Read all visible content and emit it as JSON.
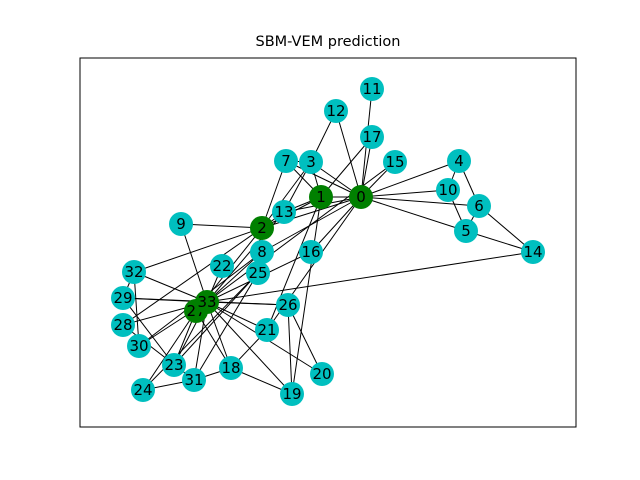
{
  "title": "SBM-VEM prediction",
  "colors": {
    "cluster_0": "#00bfbf",
    "cluster_1": "#008000",
    "edge": "#000000",
    "frame": "#000000"
  },
  "graph": {
    "nodes": [
      {
        "id": "0",
        "cluster": 1
      },
      {
        "id": "1",
        "cluster": 1
      },
      {
        "id": "2",
        "cluster": 1
      },
      {
        "id": "3",
        "cluster": 0
      },
      {
        "id": "4",
        "cluster": 0
      },
      {
        "id": "5",
        "cluster": 0
      },
      {
        "id": "6",
        "cluster": 0
      },
      {
        "id": "7",
        "cluster": 0
      },
      {
        "id": "8",
        "cluster": 0
      },
      {
        "id": "9",
        "cluster": 0
      },
      {
        "id": "10",
        "cluster": 0
      },
      {
        "id": "11",
        "cluster": 0
      },
      {
        "id": "12",
        "cluster": 0
      },
      {
        "id": "13",
        "cluster": 0
      },
      {
        "id": "14",
        "cluster": 0
      },
      {
        "id": "15",
        "cluster": 0
      },
      {
        "id": "16",
        "cluster": 0
      },
      {
        "id": "17",
        "cluster": 0
      },
      {
        "id": "18",
        "cluster": 0
      },
      {
        "id": "19",
        "cluster": 0
      },
      {
        "id": "20",
        "cluster": 0
      },
      {
        "id": "21",
        "cluster": 0
      },
      {
        "id": "22",
        "cluster": 0
      },
      {
        "id": "23",
        "cluster": 0
      },
      {
        "id": "24",
        "cluster": 0
      },
      {
        "id": "25",
        "cluster": 0
      },
      {
        "id": "26",
        "cluster": 0
      },
      {
        "id": "27",
        "cluster": 1
      },
      {
        "id": "28",
        "cluster": 0
      },
      {
        "id": "29",
        "cluster": 0
      },
      {
        "id": "30",
        "cluster": 0
      },
      {
        "id": "31",
        "cluster": 0
      },
      {
        "id": "32",
        "cluster": 0
      },
      {
        "id": "33",
        "cluster": 1
      }
    ],
    "edges": [
      [
        "0",
        "1"
      ],
      [
        "0",
        "2"
      ],
      [
        "0",
        "3"
      ],
      [
        "0",
        "4"
      ],
      [
        "0",
        "5"
      ],
      [
        "0",
        "6"
      ],
      [
        "0",
        "7"
      ],
      [
        "0",
        "8"
      ],
      [
        "0",
        "10"
      ],
      [
        "0",
        "11"
      ],
      [
        "0",
        "12"
      ],
      [
        "0",
        "13"
      ],
      [
        "0",
        "17"
      ],
      [
        "0",
        "16"
      ],
      [
        "0",
        "15"
      ],
      [
        "0",
        "21"
      ],
      [
        "1",
        "2"
      ],
      [
        "1",
        "3"
      ],
      [
        "1",
        "7"
      ],
      [
        "1",
        "13"
      ],
      [
        "1",
        "17"
      ],
      [
        "1",
        "19"
      ],
      [
        "1",
        "21"
      ],
      [
        "2",
        "3"
      ],
      [
        "2",
        "7"
      ],
      [
        "2",
        "8"
      ],
      [
        "2",
        "9"
      ],
      [
        "2",
        "13"
      ],
      [
        "2",
        "27"
      ],
      [
        "2",
        "28"
      ],
      [
        "2",
        "32"
      ],
      [
        "3",
        "7"
      ],
      [
        "3",
        "12"
      ],
      [
        "3",
        "13"
      ],
      [
        "4",
        "10"
      ],
      [
        "4",
        "6"
      ],
      [
        "5",
        "6"
      ],
      [
        "5",
        "10"
      ],
      [
        "5",
        "14"
      ],
      [
        "6",
        "14"
      ],
      [
        "8",
        "33"
      ],
      [
        "8",
        "30"
      ],
      [
        "9",
        "33"
      ],
      [
        "13",
        "33"
      ],
      [
        "14",
        "33"
      ],
      [
        "15",
        "33"
      ],
      [
        "16",
        "33"
      ],
      [
        "18",
        "33"
      ],
      [
        "19",
        "33"
      ],
      [
        "20",
        "33"
      ],
      [
        "22",
        "33"
      ],
      [
        "23",
        "33"
      ],
      [
        "23",
        "25"
      ],
      [
        "23",
        "27"
      ],
      [
        "23",
        "29"
      ],
      [
        "24",
        "25"
      ],
      [
        "24",
        "27"
      ],
      [
        "24",
        "31"
      ],
      [
        "25",
        "31"
      ],
      [
        "26",
        "33"
      ],
      [
        "26",
        "29"
      ],
      [
        "26",
        "20"
      ],
      [
        "26",
        "19"
      ],
      [
        "27",
        "33"
      ],
      [
        "28",
        "33"
      ],
      [
        "28",
        "31"
      ],
      [
        "29",
        "33"
      ],
      [
        "29",
        "32"
      ],
      [
        "30",
        "33"
      ],
      [
        "30",
        "32"
      ],
      [
        "31",
        "33"
      ],
      [
        "32",
        "33"
      ],
      [
        "21",
        "33"
      ],
      [
        "18",
        "21"
      ],
      [
        "18",
        "19"
      ],
      [
        "18",
        "27"
      ],
      [
        "31",
        "18"
      ]
    ]
  }
}
